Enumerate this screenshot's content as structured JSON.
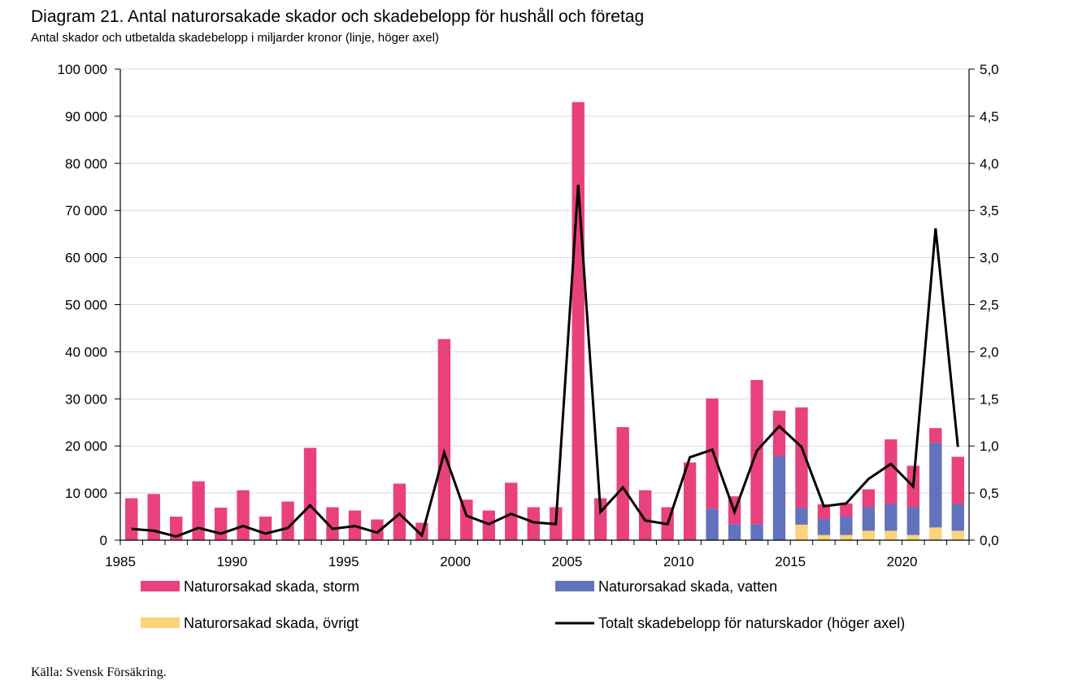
{
  "title": "Diagram 21. Antal naturorsakade skador och skadebelopp för hushåll och företag",
  "subtitle": "Antal skador och utbetalda skadebelopp i miljarder kronor (linje, höger axel)",
  "source": "Källa: Svensk Försäkring.",
  "chart_data": {
    "type": "bar",
    "stacked": true,
    "categories": [
      1985,
      1986,
      1987,
      1988,
      1989,
      1990,
      1991,
      1992,
      1993,
      1994,
      1995,
      1996,
      1997,
      1998,
      1999,
      2000,
      2001,
      2002,
      2003,
      2004,
      2005,
      2006,
      2007,
      2008,
      2009,
      2010,
      2011,
      2012,
      2013,
      2014,
      2015,
      2016,
      2017,
      2018,
      2019,
      2020,
      2021,
      2022
    ],
    "x_tick_labels": [
      "1985",
      "1990",
      "1995",
      "2000",
      "2005",
      "2010",
      "2015",
      "2020"
    ],
    "x_tick_values": [
      1985,
      1990,
      1995,
      2000,
      2005,
      2010,
      2015,
      2020
    ],
    "y_left": {
      "lim": [
        0,
        100000
      ],
      "tick_values": [
        0,
        10000,
        20000,
        30000,
        40000,
        50000,
        60000,
        70000,
        80000,
        90000,
        100000
      ],
      "tick_labels": [
        "0",
        "10 000",
        "20 000",
        "30 000",
        "40 000",
        "50 000",
        "60 000",
        "70 000",
        "80 000",
        "90 000",
        "100 000"
      ]
    },
    "y_right": {
      "lim": [
        0,
        5
      ],
      "tick_values": [
        0,
        0.5,
        1,
        1.5,
        2,
        2.5,
        3,
        3.5,
        4,
        4.5,
        5
      ],
      "tick_labels": [
        "0,0",
        "0,5",
        "1,0",
        "1,5",
        "2,0",
        "2,5",
        "3,0",
        "3,5",
        "4,0",
        "4,5",
        "5,0"
      ]
    },
    "grid": true,
    "legend_placement": "bottom",
    "series": [
      {
        "name": "Naturorsakad skada, övrigt",
        "kind": "bar",
        "color": "#fad37a",
        "values": [
          0,
          0,
          0,
          0,
          0,
          0,
          0,
          0,
          0,
          0,
          0,
          0,
          0,
          0,
          0,
          0,
          0,
          0,
          0,
          0,
          0,
          0,
          0,
          0,
          0,
          0,
          0,
          0,
          0,
          0,
          3300,
          1100,
          1100,
          2000,
          2000,
          1100,
          2700,
          2000
        ]
      },
      {
        "name": "Naturorsakad skada, vatten",
        "kind": "bar",
        "color": "#6272bd",
        "values": [
          0,
          0,
          0,
          0,
          0,
          0,
          0,
          0,
          0,
          0,
          0,
          0,
          0,
          0,
          0,
          0,
          0,
          0,
          0,
          0,
          0,
          0,
          0,
          0,
          0,
          0,
          6700,
          3400,
          3400,
          17800,
          3600,
          3400,
          3900,
          5000,
          5700,
          5900,
          18000,
          5700
        ]
      },
      {
        "name": "Naturorsakad skada, storm",
        "kind": "bar",
        "color": "#e9407e",
        "values": [
          8900,
          9800,
          5000,
          12500,
          6900,
          10600,
          5000,
          8200,
          19600,
          7000,
          6300,
          4400,
          12000,
          3700,
          42700,
          8600,
          6300,
          12200,
          7000,
          7000,
          93000,
          8900,
          24000,
          10600,
          7000,
          16500,
          23400,
          5900,
          30600,
          9700,
          21300,
          3100,
          2800,
          3800,
          13700,
          8800,
          3100,
          10000
        ]
      },
      {
        "name": "Totalt skadebelopp för naturskador (höger axel)",
        "kind": "line",
        "axis": "right",
        "color": "#000000",
        "values": [
          0.12,
          0.1,
          0.04,
          0.13,
          0.07,
          0.15,
          0.07,
          0.13,
          0.37,
          0.12,
          0.15,
          0.08,
          0.28,
          0.05,
          0.93,
          0.26,
          0.17,
          0.28,
          0.19,
          0.17,
          3.77,
          0.3,
          0.56,
          0.21,
          0.17,
          0.88,
          0.96,
          0.3,
          0.95,
          1.21,
          0.99,
          0.36,
          0.39,
          0.65,
          0.81,
          0.57,
          3.31,
          0.99
        ]
      }
    ],
    "legend": [
      {
        "label": "Naturorsakad skada, storm",
        "color": "#e9407e",
        "kind": "box"
      },
      {
        "label": "Naturorsakad skada, vatten",
        "color": "#6272bd",
        "kind": "box"
      },
      {
        "label": "Naturorsakad skada, övrigt",
        "color": "#fad37a",
        "kind": "box"
      },
      {
        "label": "Totalt skadebelopp för naturskador (höger axel)",
        "color": "#000000",
        "kind": "line"
      }
    ]
  }
}
